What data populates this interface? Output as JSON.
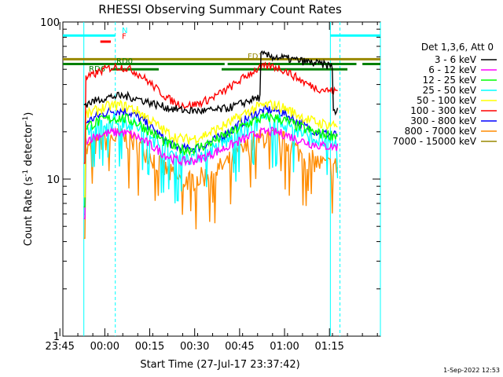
{
  "chart_data": {
    "type": "line",
    "title": "RHESSI Observing Summary Count Rates",
    "xlabel": "Start Time (27-Jul-17 23:37:42)",
    "ylabel_main": "Count Rate (s",
    "ylabel_sup1": "-1",
    "ylabel_mid": " detector",
    "ylabel_sup2": "-1",
    "ylabel_end": ")",
    "ylog": true,
    "ylim": [
      1,
      100
    ],
    "xlim_minutes": [
      -7,
      99
    ],
    "xtick_minutes": [
      -8,
      7,
      22,
      37,
      52,
      67,
      82,
      97
    ],
    "xtick_labels": [
      "23:45",
      "00:00",
      "00:15",
      "00:30",
      "00:45",
      "01:00",
      "01:15"
    ],
    "yticks": [
      1,
      10,
      100
    ],
    "ytick_labels": [
      "1",
      "10",
      "100"
    ],
    "legend_header": "Det 1,3,6, Att 0",
    "timestamp": "1-Sep-2022 12:53",
    "vlines_minutes": [
      10.5,
      85.5
    ],
    "vlines_solid_minutes": [
      0,
      82.3,
      99
    ],
    "series": [
      {
        "name": "3 - 6 keV",
        "color": "#000000",
        "base": 27,
        "amp": 1.0,
        "noise": 0.06,
        "flare": [
          62,
          74,
          65
        ]
      },
      {
        "name": "6 - 12 keV",
        "color": "#ff00ff",
        "base": 16,
        "amp": 1.25,
        "noise": 0.07,
        "flare": null
      },
      {
        "name": "12 - 25 keV",
        "color": "#00ff00",
        "base": 19,
        "amp": 1.3,
        "noise": 0.08,
        "flare": null
      },
      {
        "name": "25 - 50 keV",
        "color": "#00ffff",
        "base": 17,
        "amp": 1.4,
        "noise": 0.12,
        "flare": null
      },
      {
        "name": "50 - 100 keV",
        "color": "#ffff00",
        "base": 22,
        "amp": 1.35,
        "noise": 0.08,
        "flare": null
      },
      {
        "name": "100 - 300 keV",
        "color": "#ff0000",
        "base": 36,
        "amp": 1.45,
        "noise": 0.06,
        "flare": null
      },
      {
        "name": "300 - 800 keV",
        "color": "#0000ff",
        "base": 19,
        "amp": 1.45,
        "noise": 0.07,
        "flare": null
      },
      {
        "name": "800 - 7000 keV",
        "color": "#ff8c00",
        "base": 12,
        "amp": 1.55,
        "noise": 0.16,
        "flare": null
      },
      {
        "name": "7000 - 15000 keV",
        "color": "#998800",
        "base": 0,
        "amp": 0,
        "noise": 0,
        "flare": null
      }
    ],
    "flags": [
      {
        "label": "N",
        "color": "#00ffff",
        "y": 82,
        "segments": [
          [
            -7,
            10.5
          ],
          [
            82.3,
            99
          ]
        ]
      },
      {
        "label": "F",
        "color": "#ff0000",
        "y": 75,
        "segments": [
          [
            5.5,
            9
          ]
        ]
      },
      {
        "label": "FD1",
        "color": "#998800",
        "y": 58,
        "segments": [
          [
            -7,
            99
          ]
        ]
      },
      {
        "label": "RD0",
        "color": "#008000",
        "y": 54,
        "segments": [
          [
            -7,
            27
          ],
          [
            26,
            47
          ],
          [
            48,
            91
          ],
          [
            93,
            99
          ]
        ]
      },
      {
        "label": "RD6",
        "color": "#008000",
        "y": 50,
        "segments": [
          [
            9,
            25
          ],
          [
            46,
            88
          ]
        ]
      }
    ]
  }
}
